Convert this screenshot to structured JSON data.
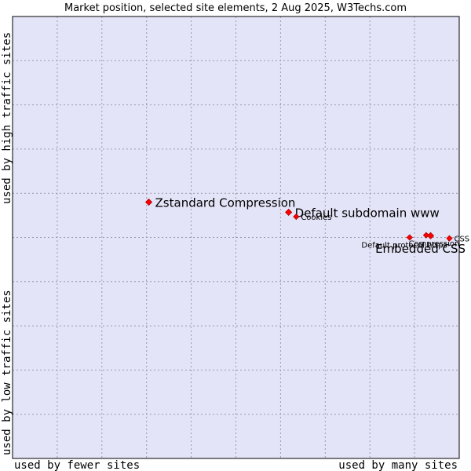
{
  "chart_data": {
    "type": "scatter",
    "title": "Market position, selected site elements, 2 Aug 2025, W3Techs.com",
    "xlabel_left": "used by fewer sites",
    "xlabel_right": "used by many sites",
    "ylabel_bottom": "used by low traffic sites",
    "ylabel_top": "used by high traffic sites",
    "xlim": [
      0,
      100
    ],
    "ylim": [
      0,
      100
    ],
    "grid": true,
    "points": [
      {
        "label": "Zstandard Compression",
        "x": 30.5,
        "y": 58.0,
        "size": "large"
      },
      {
        "label": "Default subdomain www",
        "x": 61.8,
        "y": 55.7,
        "size": "large"
      },
      {
        "label": "Cookies",
        "x": 63.5,
        "y": 54.7,
        "size": "small"
      },
      {
        "label": "Default protocol https",
        "x": 88.9,
        "y": 50.0,
        "size": "small"
      },
      {
        "label": "Compression",
        "x": 92.6,
        "y": 50.5,
        "size": "small"
      },
      {
        "label": "Embedded CSS",
        "x": 93.6,
        "y": 50.4,
        "size": "large"
      },
      {
        "label": "CSS",
        "x": 97.8,
        "y": 49.8,
        "size": "small"
      }
    ],
    "colors": {
      "plot_background": "#e4e4f8",
      "grid": "#9a9aaa",
      "marker": "#ff0000",
      "marker_edge": "#b00000"
    }
  }
}
